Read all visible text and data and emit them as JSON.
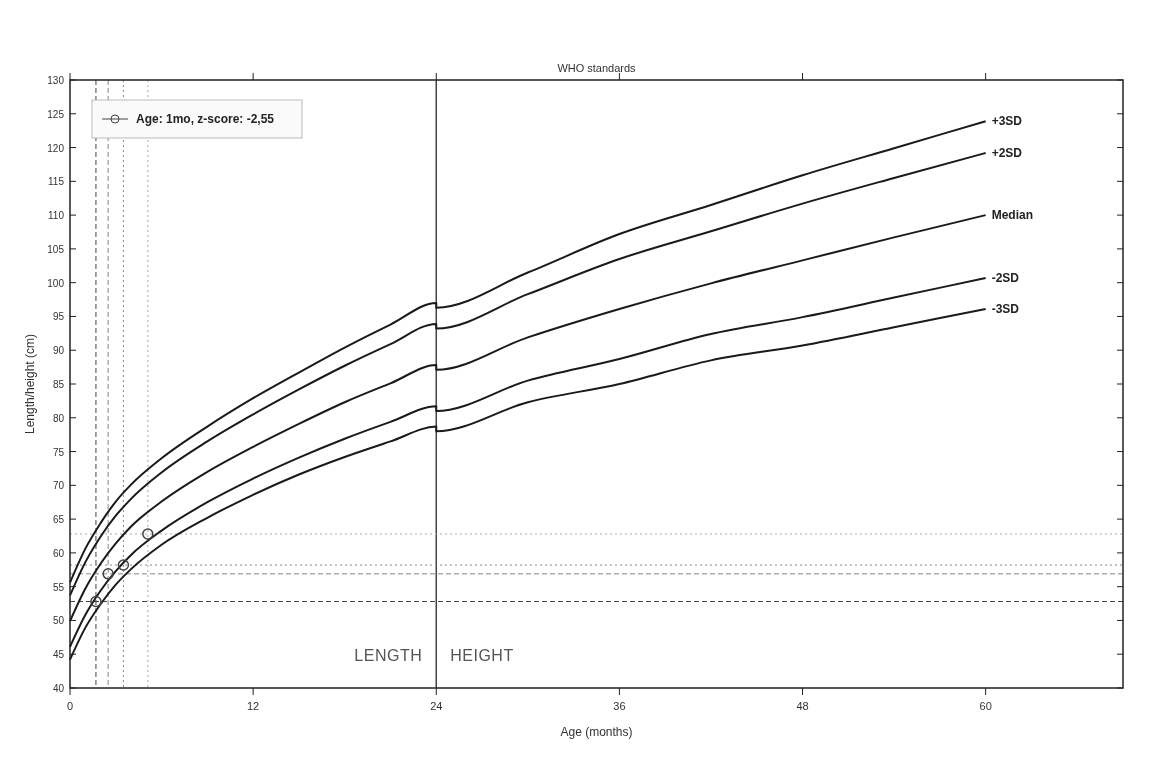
{
  "chart_data": {
    "type": "line",
    "title": "WHO standards",
    "xlabel": "Age (months)",
    "ylabel": "Length/height (cm)",
    "xlim": [
      0,
      69
    ],
    "xticks": [
      0,
      12,
      24,
      36,
      48,
      60
    ],
    "ylim": [
      40,
      130
    ],
    "yticks": [
      40,
      45,
      50,
      55,
      60,
      65,
      70,
      75,
      80,
      85,
      90,
      95,
      100,
      105,
      110,
      115,
      120,
      125,
      130
    ],
    "grid": false,
    "legend": "top left",
    "line_style": "solid",
    "series": [
      {
        "name": "+3SD",
        "color": "#1a1a1a",
        "x": [
          0,
          1,
          2,
          3,
          4,
          6,
          9,
          12,
          15,
          18,
          21,
          24,
          24,
          30,
          36,
          42,
          48,
          54,
          60
        ],
        "values": [
          55.6,
          60.6,
          64.4,
          67.6,
          70.1,
          74.0,
          78.7,
          82.9,
          86.7,
          90.4,
          93.8,
          97.0,
          96.3,
          101.5,
          107.2,
          111.5,
          115.9,
          119.9,
          123.9
        ]
      },
      {
        "name": "+2SD",
        "color": "#1a1a1a",
        "x": [
          0,
          1,
          2,
          3,
          4,
          6,
          9,
          12,
          15,
          18,
          21,
          24,
          24,
          30,
          36,
          42,
          48,
          54,
          60
        ],
        "values": [
          53.7,
          58.6,
          62.4,
          65.5,
          68.0,
          71.9,
          76.5,
          80.5,
          84.2,
          87.7,
          90.9,
          93.9,
          93.2,
          98.3,
          103.5,
          107.6,
          111.7,
          115.5,
          119.2
        ]
      },
      {
        "name": "Median",
        "color": "#1a1a1a",
        "x": [
          0,
          1,
          2,
          3,
          4,
          6,
          9,
          12,
          15,
          18,
          21,
          24,
          24,
          30,
          36,
          42,
          48,
          54,
          60
        ],
        "values": [
          49.9,
          54.7,
          58.4,
          61.4,
          63.9,
          67.6,
          72.0,
          75.7,
          79.1,
          82.3,
          85.1,
          87.8,
          87.1,
          91.9,
          96.1,
          99.9,
          103.3,
          106.7,
          110.0
        ]
      },
      {
        "name": "-2SD",
        "color": "#1a1a1a",
        "x": [
          0,
          1,
          2,
          3,
          4,
          6,
          9,
          12,
          15,
          18,
          21,
          24,
          24,
          30,
          36,
          42,
          48,
          54,
          60
        ],
        "values": [
          46.1,
          50.8,
          54.4,
          57.3,
          59.7,
          63.3,
          67.5,
          71.0,
          74.1,
          76.9,
          79.4,
          81.7,
          81.0,
          85.5,
          88.7,
          92.4,
          94.9,
          97.8,
          100.7
        ]
      },
      {
        "name": "-3SD",
        "color": "#1a1a1a",
        "x": [
          0,
          1,
          2,
          3,
          4,
          6,
          9,
          12,
          15,
          18,
          21,
          24,
          24,
          30,
          36,
          42,
          48,
          54,
          60
        ],
        "values": [
          44.2,
          48.9,
          52.4,
          55.3,
          57.6,
          61.2,
          65.2,
          68.6,
          71.6,
          74.2,
          76.5,
          78.7,
          78.0,
          82.3,
          85.0,
          88.5,
          90.7,
          93.4,
          96.1
        ]
      },
      {
        "name": "Age: 1mo, z-score: -2,55",
        "type": "scatter",
        "marker": "circle",
        "color": "#444444",
        "x": [
          1.7,
          2.5,
          3.5,
          5.1
        ],
        "values": [
          52.8,
          56.9,
          58.2,
          62.8
        ]
      }
    ],
    "ref_lines": [
      {
        "axis": "x",
        "value": 24,
        "label": null,
        "color": "#444444",
        "line_style": "solid"
      },
      {
        "axis": "x",
        "value": 1.7,
        "label": null,
        "color": "#444444",
        "line_style": "dashed"
      },
      {
        "axis": "x",
        "value": 2.5,
        "label": null,
        "color": "#888888",
        "line_style": "dashed"
      },
      {
        "axis": "x",
        "value": 3.5,
        "label": null,
        "color": "#888888",
        "line_style": "dotted"
      },
      {
        "axis": "x",
        "value": 5.1,
        "label": null,
        "color": "#aaaaaa",
        "line_style": "dotted"
      },
      {
        "axis": "y",
        "value": 52.8,
        "label": null,
        "color": "#444444",
        "line_style": "dashed"
      },
      {
        "axis": "y",
        "value": 56.9,
        "label": null,
        "color": "#888888",
        "line_style": "dashed"
      },
      {
        "axis": "y",
        "value": 58.2,
        "label": null,
        "color": "#888888",
        "line_style": "dotted"
      },
      {
        "axis": "y",
        "value": 62.8,
        "label": null,
        "color": "#aaaaaa",
        "line_style": "dotted"
      }
    ],
    "annotations": [
      {
        "text": "LENGTH",
        "x": 24,
        "y": 44
      },
      {
        "text": "HEIGHT",
        "x": 24,
        "y": 44
      }
    ]
  }
}
